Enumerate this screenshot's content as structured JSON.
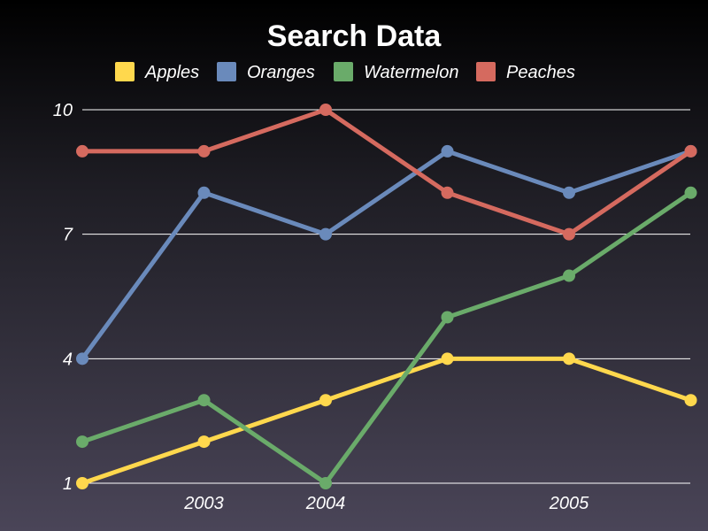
{
  "chart_data": {
    "type": "line",
    "title": "Search Data",
    "xlabel": "",
    "ylabel": "",
    "ylim": [
      1,
      10
    ],
    "y_ticks": [
      "1",
      "4",
      "7",
      "10"
    ],
    "x_ticks": [
      {
        "label": "2003",
        "index": 1
      },
      {
        "label": "2004",
        "index": 2
      },
      {
        "label": "2005",
        "index": 4
      }
    ],
    "legend_position": "top",
    "series": [
      {
        "name": "Apples",
        "color": "#ffd84d",
        "values": [
          1,
          2,
          3,
          4,
          4,
          3
        ]
      },
      {
        "name": "Oranges",
        "color": "#6a8abb",
        "values": [
          4,
          8,
          7,
          9,
          8,
          9
        ]
      },
      {
        "name": "Watermelon",
        "color": "#6aab6a",
        "values": [
          2,
          3,
          1,
          5,
          6,
          8
        ]
      },
      {
        "name": "Peaches",
        "color": "#d56a5f",
        "values": [
          9,
          9,
          10,
          8,
          7,
          9
        ]
      }
    ]
  }
}
